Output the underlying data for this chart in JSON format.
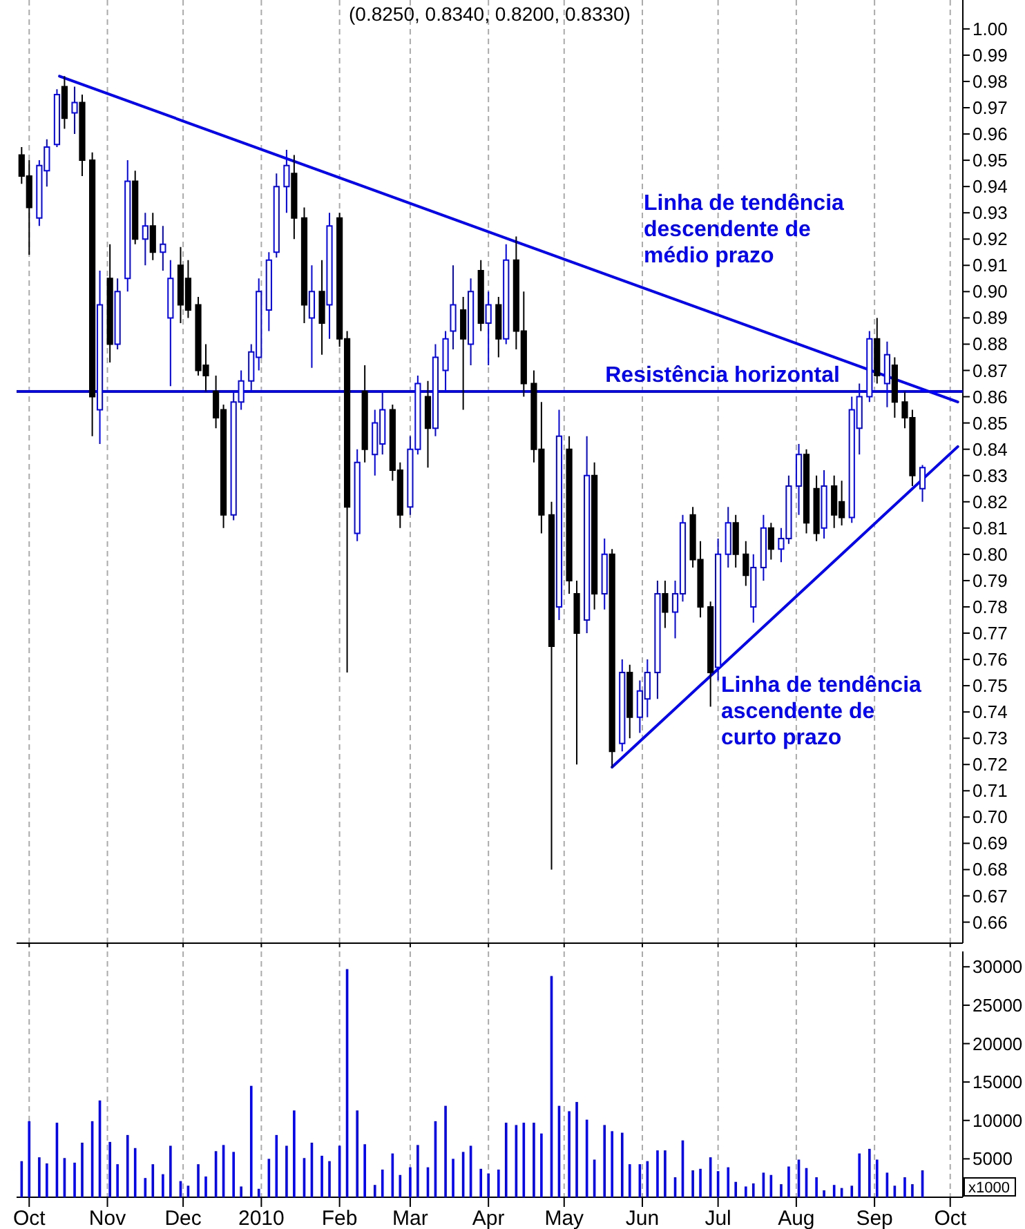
{
  "chart_data": [
    {
      "type": "candlestick",
      "title": "(0.8250, 0.8340, 0.8200, 0.8330)",
      "x": [
        "2009-09-28",
        "2009-10-01",
        "2009-10-05",
        "2009-10-08",
        "2009-10-12",
        "2009-10-15",
        "2009-10-19",
        "2009-10-22",
        "2009-10-26",
        "2009-10-29",
        "2009-11-02",
        "2009-11-05",
        "2009-11-09",
        "2009-11-12",
        "2009-11-16",
        "2009-11-19",
        "2009-11-23",
        "2009-11-26",
        "2009-11-30",
        "2009-12-03",
        "2009-12-07",
        "2009-12-10",
        "2009-12-14",
        "2009-12-17",
        "2009-12-21",
        "2009-12-24",
        "2009-12-28",
        "2009-12-31",
        "2010-01-04",
        "2010-01-07",
        "2010-01-11",
        "2010-01-14",
        "2010-01-18",
        "2010-01-21",
        "2010-01-25",
        "2010-01-28",
        "2010-02-01",
        "2010-02-04",
        "2010-02-08",
        "2010-02-11",
        "2010-02-15",
        "2010-02-18",
        "2010-02-22",
        "2010-02-25",
        "2010-03-01",
        "2010-03-04",
        "2010-03-08",
        "2010-03-11",
        "2010-03-15",
        "2010-03-18",
        "2010-03-22",
        "2010-03-25",
        "2010-03-29",
        "2010-04-01",
        "2010-04-05",
        "2010-04-08",
        "2010-04-12",
        "2010-04-15",
        "2010-04-19",
        "2010-04-22",
        "2010-04-26",
        "2010-04-29",
        "2010-05-03",
        "2010-05-06",
        "2010-05-10",
        "2010-05-13",
        "2010-05-17",
        "2010-05-20",
        "2010-05-24",
        "2010-05-27",
        "2010-05-31",
        "2010-06-03",
        "2010-06-07",
        "2010-06-10",
        "2010-06-14",
        "2010-06-17",
        "2010-06-21",
        "2010-06-24",
        "2010-06-28",
        "2010-07-01",
        "2010-07-05",
        "2010-07-08",
        "2010-07-12",
        "2010-07-15",
        "2010-07-19",
        "2010-07-22",
        "2010-07-26",
        "2010-07-29",
        "2010-08-02",
        "2010-08-05",
        "2010-08-09",
        "2010-08-12",
        "2010-08-16",
        "2010-08-19",
        "2010-08-23",
        "2010-08-26",
        "2010-08-30",
        "2010-09-02",
        "2010-09-06",
        "2010-09-09",
        "2010-09-13",
        "2010-09-16",
        "2010-09-20"
      ],
      "ohlc": [
        [
          0.952,
          0.955,
          0.941,
          0.944
        ],
        [
          0.944,
          0.95,
          0.914,
          0.932
        ],
        [
          0.928,
          0.95,
          0.925,
          0.948
        ],
        [
          0.946,
          0.958,
          0.94,
          0.955
        ],
        [
          0.956,
          0.977,
          0.955,
          0.975
        ],
        [
          0.978,
          0.982,
          0.962,
          0.966
        ],
        [
          0.968,
          0.978,
          0.96,
          0.972
        ],
        [
          0.972,
          0.975,
          0.944,
          0.95
        ],
        [
          0.95,
          0.953,
          0.845,
          0.86
        ],
        [
          0.855,
          0.908,
          0.842,
          0.895
        ],
        [
          0.905,
          0.918,
          0.873,
          0.88
        ],
        [
          0.88,
          0.905,
          0.878,
          0.9
        ],
        [
          0.905,
          0.95,
          0.9,
          0.942
        ],
        [
          0.942,
          0.946,
          0.918,
          0.92
        ],
        [
          0.92,
          0.93,
          0.91,
          0.925
        ],
        [
          0.925,
          0.93,
          0.912,
          0.915
        ],
        [
          0.915,
          0.925,
          0.908,
          0.918
        ],
        [
          0.89,
          0.912,
          0.864,
          0.905
        ],
        [
          0.91,
          0.917,
          0.888,
          0.895
        ],
        [
          0.905,
          0.912,
          0.89,
          0.893
        ],
        [
          0.895,
          0.898,
          0.868,
          0.87
        ],
        [
          0.872,
          0.88,
          0.862,
          0.868
        ],
        [
          0.862,
          0.868,
          0.848,
          0.852
        ],
        [
          0.855,
          0.857,
          0.81,
          0.815
        ],
        [
          0.815,
          0.862,
          0.813,
          0.858
        ],
        [
          0.858,
          0.87,
          0.855,
          0.866
        ],
        [
          0.866,
          0.88,
          0.862,
          0.877
        ],
        [
          0.875,
          0.905,
          0.87,
          0.9
        ],
        [
          0.893,
          0.915,
          0.885,
          0.912
        ],
        [
          0.915,
          0.945,
          0.913,
          0.94
        ],
        [
          0.94,
          0.954,
          0.93,
          0.948
        ],
        [
          0.945,
          0.952,
          0.92,
          0.928
        ],
        [
          0.928,
          0.932,
          0.888,
          0.895
        ],
        [
          0.89,
          0.91,
          0.871,
          0.9
        ],
        [
          0.9,
          0.912,
          0.876,
          0.888
        ],
        [
          0.895,
          0.93,
          0.882,
          0.925
        ],
        [
          0.928,
          0.93,
          0.879,
          0.882
        ],
        [
          0.882,
          0.885,
          0.755,
          0.818
        ],
        [
          0.808,
          0.84,
          0.805,
          0.835
        ],
        [
          0.862,
          0.872,
          0.835,
          0.84
        ],
        [
          0.838,
          0.855,
          0.83,
          0.85
        ],
        [
          0.842,
          0.862,
          0.838,
          0.855
        ],
        [
          0.855,
          0.857,
          0.828,
          0.832
        ],
        [
          0.832,
          0.835,
          0.81,
          0.815
        ],
        [
          0.818,
          0.845,
          0.815,
          0.84
        ],
        [
          0.84,
          0.868,
          0.838,
          0.865
        ],
        [
          0.86,
          0.866,
          0.833,
          0.848
        ],
        [
          0.848,
          0.88,
          0.845,
          0.875
        ],
        [
          0.87,
          0.885,
          0.862,
          0.882
        ],
        [
          0.885,
          0.91,
          0.878,
          0.895
        ],
        [
          0.893,
          0.898,
          0.855,
          0.882
        ],
        [
          0.88,
          0.905,
          0.872,
          0.9
        ],
        [
          0.908,
          0.912,
          0.885,
          0.888
        ],
        [
          0.888,
          0.9,
          0.872,
          0.895
        ],
        [
          0.895,
          0.898,
          0.875,
          0.882
        ],
        [
          0.882,
          0.918,
          0.88,
          0.912
        ],
        [
          0.912,
          0.921,
          0.878,
          0.885
        ],
        [
          0.885,
          0.9,
          0.86,
          0.865
        ],
        [
          0.865,
          0.87,
          0.835,
          0.84
        ],
        [
          0.84,
          0.858,
          0.808,
          0.815
        ],
        [
          0.815,
          0.82,
          0.68,
          0.765
        ],
        [
          0.78,
          0.855,
          0.775,
          0.845
        ],
        [
          0.84,
          0.845,
          0.785,
          0.79
        ],
        [
          0.785,
          0.79,
          0.72,
          0.77
        ],
        [
          0.775,
          0.845,
          0.77,
          0.83
        ],
        [
          0.83,
          0.835,
          0.779,
          0.785
        ],
        [
          0.785,
          0.806,
          0.779,
          0.8
        ],
        [
          0.8,
          0.802,
          0.719,
          0.725
        ],
        [
          0.728,
          0.76,
          0.725,
          0.755
        ],
        [
          0.755,
          0.758,
          0.73,
          0.738
        ],
        [
          0.738,
          0.752,
          0.732,
          0.748
        ],
        [
          0.745,
          0.76,
          0.738,
          0.755
        ],
        [
          0.755,
          0.79,
          0.745,
          0.785
        ],
        [
          0.785,
          0.79,
          0.772,
          0.778
        ],
        [
          0.778,
          0.79,
          0.768,
          0.785
        ],
        [
          0.785,
          0.815,
          0.782,
          0.812
        ],
        [
          0.815,
          0.818,
          0.795,
          0.798
        ],
        [
          0.798,
          0.805,
          0.776,
          0.78
        ],
        [
          0.78,
          0.782,
          0.742,
          0.755
        ],
        [
          0.757,
          0.806,
          0.752,
          0.8
        ],
        [
          0.8,
          0.818,
          0.795,
          0.812
        ],
        [
          0.812,
          0.815,
          0.795,
          0.8
        ],
        [
          0.8,
          0.805,
          0.788,
          0.792
        ],
        [
          0.78,
          0.8,
          0.774,
          0.795
        ],
        [
          0.795,
          0.815,
          0.79,
          0.81
        ],
        [
          0.81,
          0.812,
          0.798,
          0.802
        ],
        [
          0.802,
          0.81,
          0.797,
          0.806
        ],
        [
          0.806,
          0.83,
          0.804,
          0.826
        ],
        [
          0.826,
          0.842,
          0.815,
          0.838
        ],
        [
          0.838,
          0.84,
          0.808,
          0.812
        ],
        [
          0.825,
          0.83,
          0.805,
          0.808
        ],
        [
          0.81,
          0.832,
          0.806,
          0.826
        ],
        [
          0.826,
          0.83,
          0.81,
          0.815
        ],
        [
          0.82,
          0.828,
          0.811,
          0.814
        ],
        [
          0.814,
          0.86,
          0.812,
          0.855
        ],
        [
          0.848,
          0.865,
          0.838,
          0.86
        ],
        [
          0.86,
          0.885,
          0.858,
          0.882
        ],
        [
          0.882,
          0.89,
          0.865,
          0.868
        ],
        [
          0.865,
          0.881,
          0.856,
          0.876
        ],
        [
          0.872,
          0.875,
          0.852,
          0.858
        ],
        [
          0.858,
          0.862,
          0.848,
          0.852
        ],
        [
          0.852,
          0.855,
          0.826,
          0.83
        ],
        [
          0.825,
          0.834,
          0.82,
          0.833
        ]
      ],
      "colors": [
        "#000000",
        "#000000",
        "#0000ff",
        "#0000ff",
        "#0000ff",
        "#000000",
        "#0000ff",
        "#000000",
        "#000000",
        "#0000ff",
        "#000000",
        "#0000ff",
        "#0000ff",
        "#000000",
        "#0000ff",
        "#000000",
        "#0000ff",
        "#0000ff",
        "#000000",
        "#000000",
        "#000000",
        "#000000",
        "#000000",
        "#000000",
        "#0000ff",
        "#0000ff",
        "#0000ff",
        "#0000ff",
        "#0000ff",
        "#0000ff",
        "#0000ff",
        "#000000",
        "#000000",
        "#0000ff",
        "#000000",
        "#0000ff",
        "#000000",
        "#000000",
        "#0000ff",
        "#000000",
        "#0000ff",
        "#0000ff",
        "#000000",
        "#000000",
        "#0000ff",
        "#0000ff",
        "#000000",
        "#0000ff",
        "#0000ff",
        "#0000ff",
        "#000000",
        "#0000ff",
        "#000000",
        "#0000ff",
        "#000000",
        "#0000ff",
        "#000000",
        "#000000",
        "#000000",
        "#000000",
        "#000000",
        "#0000ff",
        "#000000",
        "#000000",
        "#0000ff",
        "#000000",
        "#0000ff",
        "#000000",
        "#0000ff",
        "#000000",
        "#0000ff",
        "#0000ff",
        "#0000ff",
        "#000000",
        "#0000ff",
        "#0000ff",
        "#000000",
        "#000000",
        "#000000",
        "#0000ff",
        "#0000ff",
        "#000000",
        "#000000",
        "#0000ff",
        "#0000ff",
        "#000000",
        "#0000ff",
        "#0000ff",
        "#0000ff",
        "#000000",
        "#000000",
        "#0000ff",
        "#000000",
        "#000000",
        "#0000ff",
        "#0000ff",
        "#0000ff",
        "#000000",
        "#0000ff",
        "#000000",
        "#000000",
        "#000000",
        "#0000ff"
      ],
      "series": [
        {
          "type": "line",
          "color": "#0000ff",
          "x": [
            "2009-10-13",
            "2010-10-04"
          ],
          "values": [
            0.982,
            0.858
          ]
        },
        {
          "type": "line",
          "color": "#0000ff",
          "x": [
            "2010-05-20",
            "2010-10-04"
          ],
          "values": [
            0.719,
            0.841
          ]
        }
      ],
      "ref_lines": [
        {
          "axis": "y",
          "value": 0.862,
          "label": "Resistência horizontal",
          "color": "#0000ff"
        }
      ],
      "annotations": [
        "Linha de tendência\ndescendente de\nmédio prazo",
        "Linha de tendência\nascendente de\ncurto prazo"
      ],
      "xlim": [
        "2009-09-26",
        "2010-10-06"
      ],
      "xticks": [
        {
          "value": "2009-10-01",
          "label": null
        },
        {
          "value": "2009-11-01",
          "label": null
        },
        {
          "value": "2009-12-01",
          "label": null
        },
        {
          "value": "2010-01-01",
          "label": null
        },
        {
          "value": "2010-02-01",
          "label": null
        },
        {
          "value": "2010-03-01",
          "label": null
        },
        {
          "value": "2010-04-01",
          "label": null
        },
        {
          "value": "2010-05-01",
          "label": null
        },
        {
          "value": "2010-06-01",
          "label": null
        },
        {
          "value": "2010-07-01",
          "label": null
        },
        {
          "value": "2010-08-01",
          "label": null
        },
        {
          "value": "2010-09-01",
          "label": null
        },
        {
          "value": "2010-10-01",
          "label": null
        }
      ],
      "ylim": [
        0.652,
        1.011
      ],
      "yticks": [
        0.66,
        0.67,
        0.68,
        0.69,
        {
          "value": 0.7,
          "label": "0.70"
        },
        0.71,
        0.72,
        0.73,
        0.74,
        0.75,
        0.76,
        0.77,
        0.78,
        0.79,
        {
          "value": 0.8,
          "label": "0.80"
        },
        0.81,
        0.82,
        0.83,
        0.84,
        0.85,
        0.86,
        0.87,
        0.88,
        0.89,
        {
          "value": 0.9,
          "label": "0.90"
        },
        0.91,
        0.92,
        0.93,
        0.94,
        0.95,
        0.96,
        0.97,
        0.98,
        0.99,
        {
          "value": 1,
          "label": "1.00"
        }
      ],
      "grid": "x",
      "tick_labels": "y"
    },
    {
      "type": "bar",
      "color": "#0000ff",
      "x": [
        "2009-09-28",
        "2009-10-01",
        "2009-10-05",
        "2009-10-08",
        "2009-10-12",
        "2009-10-15",
        "2009-10-19",
        "2009-10-22",
        "2009-10-26",
        "2009-10-29",
        "2009-11-02",
        "2009-11-05",
        "2009-11-09",
        "2009-11-12",
        "2009-11-16",
        "2009-11-19",
        "2009-11-23",
        "2009-11-26",
        "2009-11-30",
        "2009-12-03",
        "2009-12-07",
        "2009-12-10",
        "2009-12-14",
        "2009-12-17",
        "2009-12-21",
        "2009-12-24",
        "2009-12-28",
        "2009-12-31",
        "2010-01-04",
        "2010-01-07",
        "2010-01-11",
        "2010-01-14",
        "2010-01-18",
        "2010-01-21",
        "2010-01-25",
        "2010-01-28",
        "2010-02-01",
        "2010-02-04",
        "2010-02-08",
        "2010-02-11",
        "2010-02-15",
        "2010-02-18",
        "2010-02-22",
        "2010-02-25",
        "2010-03-01",
        "2010-03-04",
        "2010-03-08",
        "2010-03-11",
        "2010-03-15",
        "2010-03-18",
        "2010-03-22",
        "2010-03-25",
        "2010-03-29",
        "2010-04-01",
        "2010-04-05",
        "2010-04-08",
        "2010-04-12",
        "2010-04-15",
        "2010-04-19",
        "2010-04-22",
        "2010-04-26",
        "2010-04-29",
        "2010-05-03",
        "2010-05-06",
        "2010-05-10",
        "2010-05-13",
        "2010-05-17",
        "2010-05-20",
        "2010-05-24",
        "2010-05-27",
        "2010-05-31",
        "2010-06-03",
        "2010-06-07",
        "2010-06-10",
        "2010-06-14",
        "2010-06-17",
        "2010-06-21",
        "2010-06-24",
        "2010-06-28",
        "2010-07-01",
        "2010-07-05",
        "2010-07-08",
        "2010-07-12",
        "2010-07-15",
        "2010-07-19",
        "2010-07-22",
        "2010-07-26",
        "2010-07-29",
        "2010-08-02",
        "2010-08-05",
        "2010-08-09",
        "2010-08-12",
        "2010-08-16",
        "2010-08-19",
        "2010-08-23",
        "2010-08-26",
        "2010-08-30",
        "2010-09-02",
        "2010-09-06",
        "2010-09-09",
        "2010-09-13",
        "2010-09-16",
        "2010-09-20"
      ],
      "values": [
        4700,
        9900,
        5200,
        4400,
        9700,
        5100,
        4500,
        7100,
        9900,
        12600,
        7200,
        4300,
        8100,
        6400,
        2500,
        4300,
        3000,
        6700,
        2100,
        1500,
        4300,
        2700,
        6000,
        6800,
        5900,
        1400,
        14500,
        1100,
        5000,
        8100,
        6700,
        11300,
        5100,
        7100,
        5400,
        4700,
        6700,
        29700,
        11300,
        6900,
        1600,
        3600,
        5700,
        2900,
        3900,
        6800,
        3900,
        9900,
        11900,
        5000,
        5900,
        6700,
        3700,
        3100,
        3600,
        9700,
        9400,
        9700,
        9700,
        8300,
        28800,
        11900,
        11200,
        12400,
        10100,
        4900,
        9400,
        8600,
        8400,
        4300,
        4300,
        4700,
        6100,
        6100,
        2600,
        7400,
        3500,
        3700,
        5200,
        3400,
        3900,
        2000,
        1400,
        1800,
        3200,
        2900,
        1700,
        4000,
        4900,
        3800,
        2600,
        900,
        1600,
        1200,
        1500,
        5700,
        6300,
        4900,
        3200,
        1500,
        2600,
        1700,
        3500
      ],
      "annotations": [
        "x1000"
      ],
      "xlim": [
        "2009-09-26",
        "2010-10-06"
      ],
      "xticks": [
        {
          "value": "2009-10-01",
          "label": "Oct"
        },
        {
          "value": "2009-11-01",
          "label": "Nov"
        },
        {
          "value": "2009-12-01",
          "label": "Dec"
        },
        {
          "value": "2010-01-01",
          "label": "2010"
        },
        {
          "value": "2010-02-01",
          "label": "Feb"
        },
        {
          "value": "2010-03-01",
          "label": "Mar"
        },
        {
          "value": "2010-04-01",
          "label": "Apr"
        },
        {
          "value": "2010-05-01",
          "label": "May"
        },
        {
          "value": "2010-06-01",
          "label": "Jun"
        },
        {
          "value": "2010-07-01",
          "label": "Jul"
        },
        {
          "value": "2010-08-01",
          "label": "Aug"
        },
        {
          "value": "2010-09-01",
          "label": "Sep"
        },
        {
          "value": "2010-10-01",
          "label": "Oct"
        }
      ],
      "ylim": [
        0,
        32000
      ],
      "yticks": [
        5000,
        10000,
        15000,
        20000,
        25000,
        30000
      ],
      "grid": "x"
    }
  ]
}
